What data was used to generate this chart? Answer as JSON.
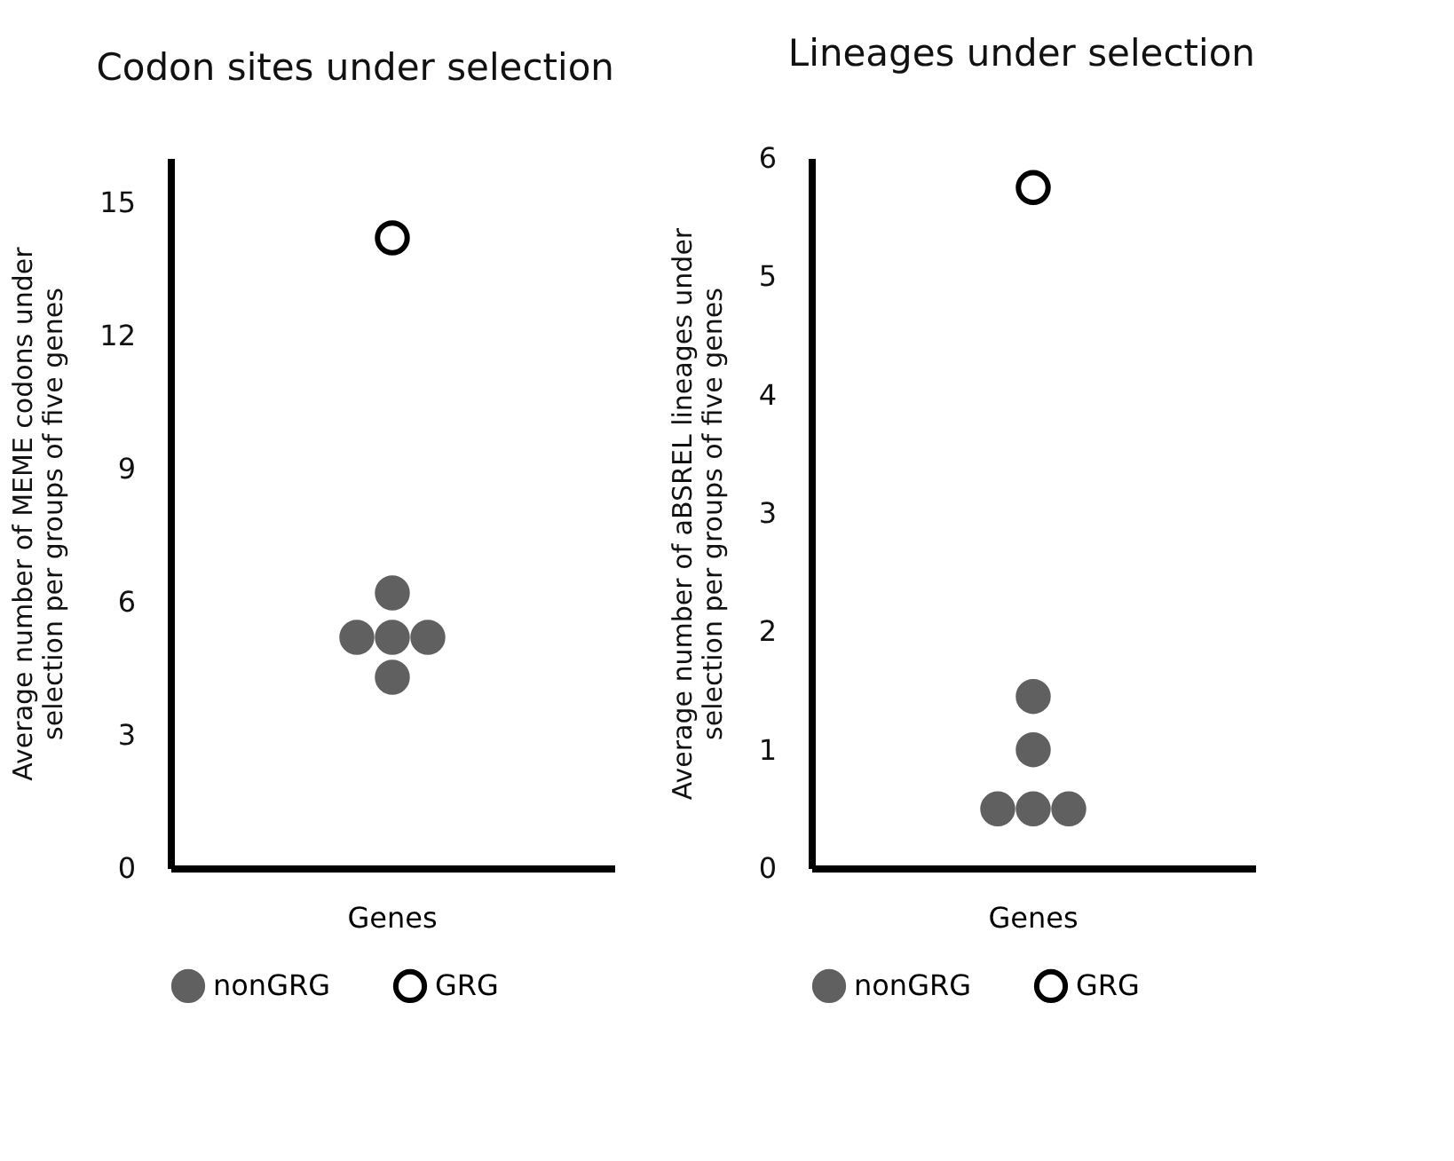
{
  "chart_data": [
    {
      "type": "scatter",
      "title": "Codon sites under selection",
      "ylabel": "Average number of MEME codons under selection per groups of five genes",
      "categories": [
        "Genes"
      ],
      "ylim": [
        0,
        16
      ],
      "yticks": [
        0,
        3,
        6,
        9,
        12,
        15
      ],
      "legend": "bottom",
      "marker": "circle",
      "grid": false,
      "series": [
        {
          "name": "nonGRG",
          "color": "#606060",
          "x": [
            "Genes",
            "Genes",
            "Genes",
            "Genes",
            "Genes"
          ],
          "values": [
            6.2,
            5.2,
            5.2,
            5.2,
            4.3
          ]
        },
        {
          "name": "GRG",
          "color": "#000000",
          "x": [
            "Genes"
          ],
          "values": [
            14.2
          ]
        }
      ]
    },
    {
      "type": "scatter",
      "title": "Lineages under selection",
      "ylabel": "Average number  of aBSREL lineages under selection per groups of five genes",
      "categories": [
        "Genes"
      ],
      "ylim": [
        0,
        6
      ],
      "yticks": [
        0,
        1,
        2,
        3,
        4,
        5,
        6
      ],
      "legend": "bottom",
      "marker": "circle",
      "grid": false,
      "series": [
        {
          "name": "nonGRG",
          "color": "#606060",
          "x": [
            "Genes",
            "Genes",
            "Genes",
            "Genes",
            "Genes"
          ],
          "values": [
            1.45,
            1.0,
            0.5,
            0.5,
            0.5
          ]
        },
        {
          "name": "GRG",
          "color": "#000000",
          "x": [
            "Genes"
          ],
          "values": [
            5.75
          ]
        }
      ]
    }
  ]
}
